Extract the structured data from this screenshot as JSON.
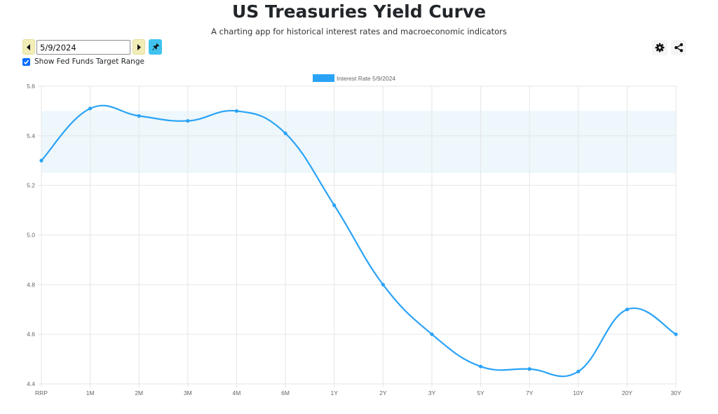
{
  "header": {
    "title": "US Treasuries Yield Curve",
    "subtitle": "A charting app for historical interest rates and macroeconomic indicators"
  },
  "controls": {
    "date_value": "5/9/2024",
    "prev_icon": "caret-left-icon",
    "next_icon": "caret-right-icon",
    "pin_icon": "pin-icon",
    "fed_funds_label": "Show Fed Funds Target Range",
    "fed_funds_checked": true,
    "settings_icon": "gear-icon",
    "share_icon": "share-icon"
  },
  "colors": {
    "series": "#2aa3f7",
    "band": "#eef7fc",
    "nav_button": "#f2edb7",
    "pin_button": "#3fc3ee",
    "checkbox": "#0d6efd"
  },
  "chart_data": {
    "type": "line",
    "title": "",
    "categories": [
      "RRP",
      "1M",
      "2M",
      "3M",
      "4M",
      "6M",
      "1Y",
      "2Y",
      "3Y",
      "5Y",
      "7Y",
      "10Y",
      "20Y",
      "30Y"
    ],
    "series": [
      {
        "name": "Interest Rate 5/9/2024",
        "values": [
          5.3,
          5.51,
          5.48,
          5.46,
          5.5,
          5.41,
          5.12,
          4.8,
          4.6,
          4.47,
          4.46,
          4.45,
          4.7,
          4.6
        ]
      }
    ],
    "band": {
      "label": "Fed Funds Target Range",
      "low": 5.25,
      "high": 5.5
    },
    "ylim": [
      4.4,
      5.6
    ],
    "yticks": [
      "5.6",
      "5.4",
      "5.2",
      "5.0",
      "4.8",
      "4.6",
      "4.4"
    ],
    "grid": true,
    "legend": "top-center",
    "xlabel": "",
    "ylabel": ""
  }
}
